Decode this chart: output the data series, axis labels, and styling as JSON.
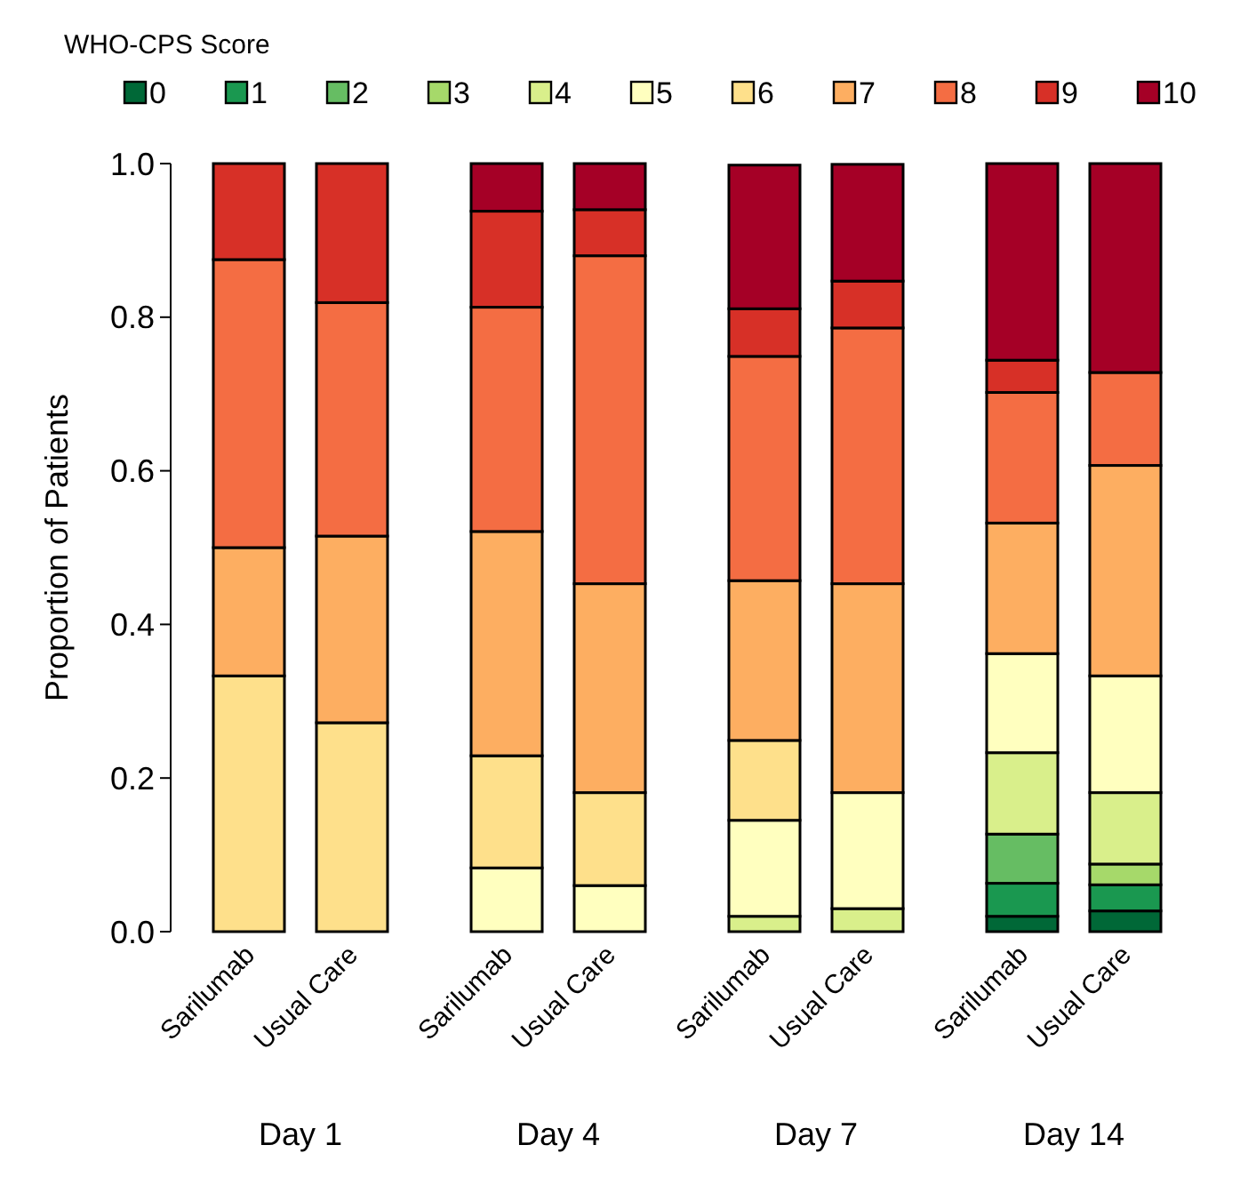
{
  "chart_data": [
    {
      "type": "bar",
      "stacked": true,
      "xlabel": "Day 1",
      "ylabel": "Proportion of Patients",
      "legend_title": "WHO-CPS Score",
      "legend": "top",
      "categories": [
        "Sarilumab",
        "Usual Care"
      ],
      "ylim": [
        0,
        1
      ],
      "yticks": [
        {
          "value": 0,
          "label": "0.0"
        },
        {
          "value": 0.2,
          "label": "0.2"
        },
        {
          "value": 0.4,
          "label": "0.4"
        },
        {
          "value": 0.6,
          "label": "0.6"
        },
        {
          "value": 0.8,
          "label": "0.8"
        },
        {
          "value": 1,
          "label": "1.0"
        }
      ],
      "series": [
        {
          "name": "0",
          "color": "#006837",
          "values": [
            0,
            0
          ]
        },
        {
          "name": "1",
          "color": "#1a9850",
          "values": [
            0,
            0
          ]
        },
        {
          "name": "2",
          "color": "#66bd63",
          "values": [
            0,
            0
          ]
        },
        {
          "name": "3",
          "color": "#a6d96a",
          "values": [
            0,
            0
          ]
        },
        {
          "name": "4",
          "color": "#d9ef8b",
          "values": [
            0,
            0
          ]
        },
        {
          "name": "5",
          "color": "#ffffbf",
          "values": [
            0,
            0
          ]
        },
        {
          "name": "6",
          "color": "#fee08b",
          "values": [
            0.333,
            0.272
          ]
        },
        {
          "name": "7",
          "color": "#fdae61",
          "values": [
            0.167,
            0.243
          ]
        },
        {
          "name": "8",
          "color": "#f46d43",
          "values": [
            0.375,
            0.304
          ]
        },
        {
          "name": "9",
          "color": "#d73027",
          "values": [
            0.125,
            0.181
          ]
        },
        {
          "name": "10",
          "color": "#a50026",
          "values": [
            0,
            0
          ]
        }
      ]
    },
    {
      "type": "bar",
      "stacked": true,
      "xlabel": "Day 4",
      "categories": [
        "Sarilumab",
        "Usual Care"
      ],
      "ylim": [
        0,
        1
      ],
      "tick_labels": "x",
      "series": [
        {
          "color": "#006837",
          "values": [
            0,
            0
          ]
        },
        {
          "color": "#1a9850",
          "values": [
            0,
            0
          ]
        },
        {
          "color": "#66bd63",
          "values": [
            0,
            0
          ]
        },
        {
          "color": "#a6d96a",
          "values": [
            0,
            0
          ]
        },
        {
          "color": "#d9ef8b",
          "values": [
            0,
            0
          ]
        },
        {
          "color": "#ffffbf",
          "values": [
            0.083,
            0.06
          ]
        },
        {
          "color": "#fee08b",
          "values": [
            0.146,
            0.121
          ]
        },
        {
          "color": "#fdae61",
          "values": [
            0.292,
            0.272
          ]
        },
        {
          "color": "#f46d43",
          "values": [
            0.292,
            0.427
          ]
        },
        {
          "color": "#d73027",
          "values": [
            0.125,
            0.06
          ]
        },
        {
          "color": "#a50026",
          "values": [
            0.062,
            0.06
          ]
        }
      ]
    },
    {
      "type": "bar",
      "stacked": true,
      "xlabel": "Day 7",
      "categories": [
        "Sarilumab",
        "Usual Care"
      ],
      "ylim": [
        0,
        1
      ],
      "tick_labels": "x",
      "series": [
        {
          "color": "#006837",
          "values": [
            0,
            0
          ]
        },
        {
          "color": "#1a9850",
          "values": [
            0,
            0
          ]
        },
        {
          "color": "#66bd63",
          "values": [
            0,
            0
          ]
        },
        {
          "color": "#a6d96a",
          "values": [
            0,
            0
          ]
        },
        {
          "color": "#d9ef8b",
          "values": [
            0.02,
            0.03
          ]
        },
        {
          "color": "#ffffbf",
          "values": [
            0.125,
            0.151
          ]
        },
        {
          "color": "#fee08b",
          "values": [
            0.104,
            0
          ]
        },
        {
          "color": "#fdae61",
          "values": [
            0.208,
            0.272
          ]
        },
        {
          "color": "#f46d43",
          "values": [
            0.292,
            0.333
          ]
        },
        {
          "color": "#d73027",
          "values": [
            0.062,
            0.061
          ]
        },
        {
          "color": "#a50026",
          "values": [
            0.187,
            0.152
          ]
        }
      ]
    },
    {
      "type": "bar",
      "stacked": true,
      "xlabel": "Day 14",
      "categories": [
        "Sarilumab",
        "Usual Care"
      ],
      "ylim": [
        0,
        1
      ],
      "tick_labels": "x",
      "series": [
        {
          "color": "#006837",
          "values": [
            0.02,
            0.027
          ]
        },
        {
          "color": "#1a9850",
          "values": [
            0.043,
            0.034
          ]
        },
        {
          "color": "#66bd63",
          "values": [
            0.064,
            0
          ]
        },
        {
          "color": "#a6d96a",
          "values": [
            0,
            0.027
          ]
        },
        {
          "color": "#d9ef8b",
          "values": [
            0.106,
            0.093
          ]
        },
        {
          "color": "#ffffbf",
          "values": [
            0.129,
            0.152
          ]
        },
        {
          "color": "#fee08b",
          "values": [
            0,
            0
          ]
        },
        {
          "color": "#fdae61",
          "values": [
            0.17,
            0.274
          ]
        },
        {
          "color": "#f46d43",
          "values": [
            0.17,
            0.121
          ]
        },
        {
          "color": "#d73027",
          "values": [
            0.042,
            0
          ]
        },
        {
          "color": "#a50026",
          "values": [
            0.256,
            0.272
          ]
        }
      ]
    }
  ]
}
